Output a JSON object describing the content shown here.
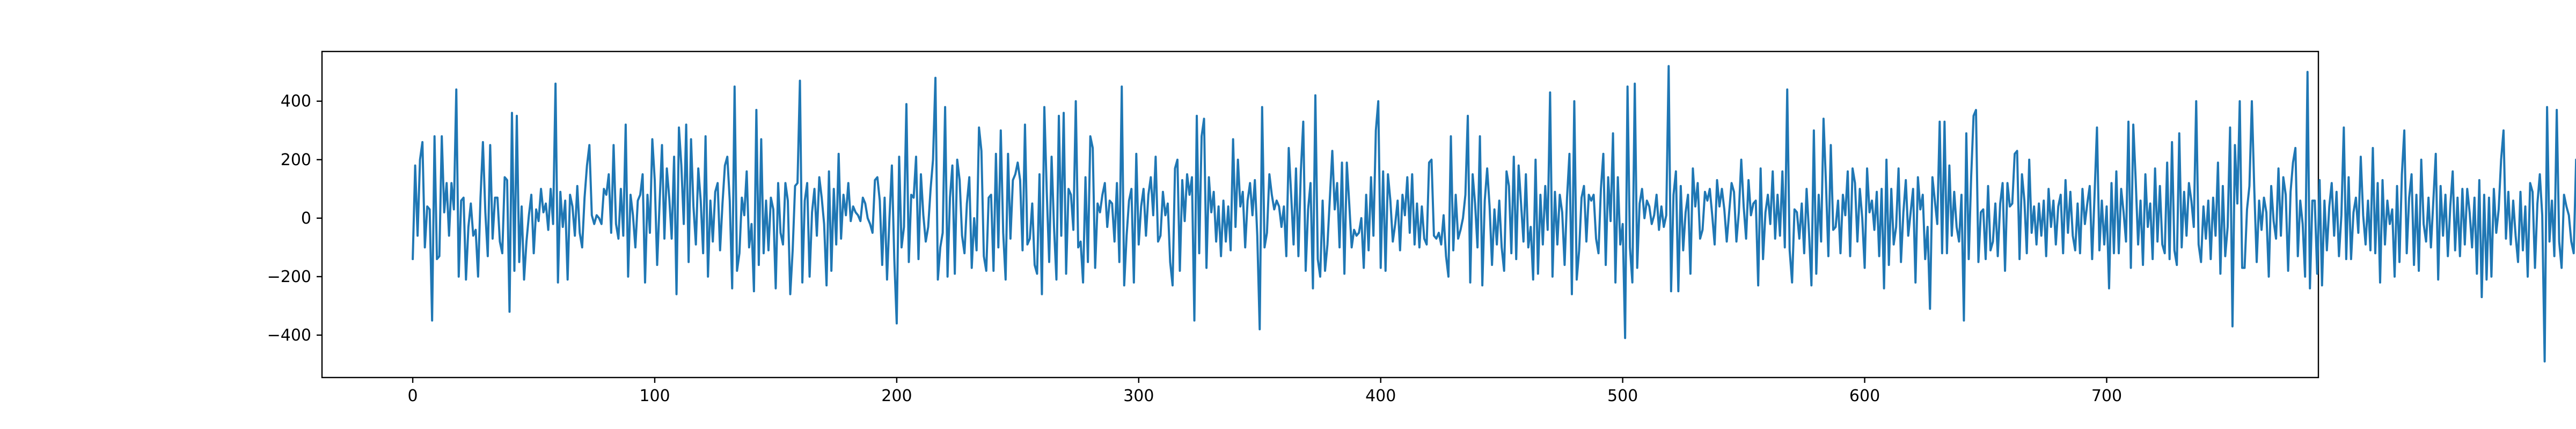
{
  "chart_data": {
    "type": "line",
    "title": "",
    "xlabel": "",
    "ylabel": "",
    "xlim": [
      -37.5,
      787.5
    ],
    "ylim": [
      -545,
      570
    ],
    "grid": false,
    "legend": "none",
    "xticks": [
      0,
      100,
      200,
      300,
      400,
      500,
      600,
      700
    ],
    "yticks": [
      -400,
      -200,
      0,
      200,
      400
    ],
    "xtick_labels": [
      "0",
      "100",
      "200",
      "300",
      "400",
      "500",
      "600",
      "700"
    ],
    "ytick_labels": [
      "−400",
      "−200",
      "0",
      "200",
      "400"
    ],
    "series": [
      {
        "color": "#1f77b4",
        "x_start": 0,
        "x_step": 1,
        "values": [
          -140,
          180,
          -60,
          200,
          260,
          -100,
          40,
          30,
          -350,
          280,
          -140,
          -130,
          280,
          20,
          120,
          -60,
          120,
          30,
          440,
          -200,
          60,
          70,
          -210,
          -30,
          50,
          -60,
          -40,
          -200,
          70,
          260,
          20,
          -130,
          250,
          -70,
          70,
          70,
          -80,
          -120,
          140,
          130,
          -320,
          360,
          -180,
          350,
          -150,
          40,
          -210,
          -80,
          10,
          80,
          -120,
          30,
          -10,
          100,
          20,
          50,
          -40,
          100,
          -20,
          460,
          -220,
          90,
          -30,
          60,
          -210,
          80,
          40,
          -60,
          110,
          -50,
          -100,
          70,
          180,
          250,
          10,
          -20,
          10,
          0,
          -20,
          100,
          80,
          150,
          -50,
          250,
          -20,
          -70,
          100,
          -60,
          320,
          -200,
          80,
          10,
          -100,
          60,
          80,
          150,
          -220,
          80,
          -50,
          270,
          130,
          -160,
          50,
          250,
          -70,
          170,
          70,
          -70,
          210,
          -260,
          310,
          180,
          -20,
          320,
          -150,
          270,
          40,
          -90,
          170,
          60,
          -120,
          280,
          -200,
          60,
          -80,
          90,
          120,
          -110,
          50,
          180,
          210,
          60,
          -240,
          450,
          -180,
          -120,
          70,
          10,
          160,
          -100,
          -20,
          -250,
          370,
          -160,
          270,
          -120,
          60,
          -110,
          70,
          30,
          -240,
          120,
          -50,
          -90,
          120,
          60,
          -260,
          -110,
          110,
          120,
          470,
          -220,
          60,
          120,
          -200,
          20,
          100,
          -60,
          140,
          70,
          -20,
          -230,
          160,
          -180,
          100,
          -90,
          220,
          -70,
          80,
          10,
          120,
          -10,
          40,
          20,
          10,
          -10,
          70,
          50,
          0,
          -20,
          -50,
          130,
          140,
          60,
          -160,
          70,
          -210,
          0,
          180,
          -140,
          -360,
          210,
          -100,
          -30,
          390,
          -150,
          80,
          70,
          210,
          -140,
          150,
          10,
          -80,
          -30,
          100,
          200,
          480,
          -210,
          -100,
          -50,
          380,
          -200,
          70,
          180,
          -190,
          200,
          130,
          -60,
          -120,
          50,
          140,
          -170,
          0,
          -110,
          310,
          230,
          -130,
          -180,
          70,
          80,
          -180,
          220,
          -100,
          300,
          -50,
          -210,
          220,
          -70,
          130,
          150,
          190,
          130,
          -110,
          320,
          -90,
          -70,
          50,
          -160,
          -190,
          150,
          -260,
          380,
          90,
          -150,
          210,
          -30,
          -210,
          350,
          -60,
          360,
          -190,
          100,
          80,
          -40,
          400,
          -100,
          -80,
          -220,
          140,
          -150,
          280,
          240,
          -170,
          50,
          20,
          80,
          120,
          -30,
          60,
          50,
          -80,
          120,
          -150,
          450,
          -230,
          -60,
          60,
          100,
          -220,
          220,
          -90,
          40,
          100,
          -60,
          80,
          140,
          10,
          210,
          -80,
          -60,
          90,
          10,
          50,
          -150,
          -230,
          170,
          200,
          -180,
          130,
          -10,
          150,
          80,
          140,
          -350,
          350,
          -120,
          280,
          340,
          -170,
          140,
          20,
          90,
          -80,
          40,
          -130,
          60,
          -80,
          40,
          -110,
          270,
          -30,
          200,
          40,
          90,
          -100,
          60,
          120,
          10,
          130,
          -60,
          -380,
          380,
          -100,
          -50,
          150,
          80,
          30,
          60,
          40,
          -30,
          40,
          -130,
          240,
          80,
          -90,
          170,
          -130,
          160,
          330,
          -180,
          30,
          120,
          -240,
          420,
          -140,
          -200,
          60,
          -180,
          -90,
          70,
          230,
          30,
          120,
          -100,
          190,
          -190,
          190,
          50,
          -100,
          -40,
          -60,
          -50,
          0,
          -170,
          80,
          -110,
          140,
          -60,
          300,
          400,
          -170,
          160,
          -180,
          150,
          60,
          -80,
          -20,
          60,
          -110,
          80,
          10,
          140,
          -50,
          150,
          -90,
          50,
          -100,
          40,
          -70,
          -90,
          190,
          200,
          -60,
          -70,
          -50,
          -90,
          10,
          -130,
          -200,
          280,
          -110,
          80,
          -70,
          -40,
          0,
          80,
          350,
          -220,
          150,
          50,
          -100,
          280,
          -230,
          60,
          170,
          40,
          -160,
          30,
          -90,
          60,
          -100,
          -180,
          160,
          110,
          -120,
          210,
          -140,
          180,
          50,
          -80,
          150,
          -100,
          -30,
          -210,
          200,
          -190,
          80,
          -90,
          110,
          -40,
          430,
          -200,
          90,
          -90,
          80,
          20,
          -160,
          70,
          220,
          -260,
          400,
          -210,
          -110,
          70,
          110,
          -80,
          80,
          60,
          80,
          -70,
          -120,
          100,
          220,
          -160,
          140,
          -10,
          290,
          -220,
          140,
          -90,
          -20,
          -410,
          450,
          -100,
          -220,
          460,
          -170,
          50,
          100,
          0,
          60,
          40,
          -20,
          10,
          80,
          -40,
          40,
          -30,
          10,
          520,
          -250,
          80,
          160,
          -250,
          110,
          -110,
          20,
          80,
          -190,
          170,
          40,
          120,
          -70,
          -40,
          90,
          60,
          100,
          10,
          -90,
          130,
          40,
          100,
          30,
          -80,
          20,
          120,
          90,
          -80,
          20,
          200,
          40,
          -70,
          130,
          10,
          50,
          60,
          -230,
          170,
          -140,
          20,
          80,
          -20,
          160,
          -70,
          80,
          -60,
          160,
          -100,
          440,
          -110,
          -220,
          30,
          20,
          -70,
          50,
          -120,
          100,
          -50,
          -230,
          300,
          -190,
          80,
          -80,
          340,
          120,
          -130,
          250,
          -40,
          -30,
          60,
          -120,
          80,
          10,
          160,
          -130,
          170,
          120,
          -80,
          100,
          0,
          -170,
          170,
          20,
          60,
          -40,
          90,
          -130,
          100,
          -240,
          200,
          -160,
          100,
          -90,
          -30,
          170,
          -150,
          20,
          130,
          -60,
          20,
          100,
          -220,
          140,
          30,
          80,
          -140,
          -30,
          -310,
          140,
          60,
          -20,
          330,
          -120,
          330,
          -120,
          180,
          -60,
          90,
          -30,
          -80,
          80,
          -350,
          290,
          -140,
          140,
          350,
          370,
          -150,
          20,
          30,
          -140,
          110,
          -110,
          -80,
          50,
          -130,
          50,
          120,
          -180,
          120,
          40,
          50,
          220,
          230,
          -140,
          150,
          60,
          -120,
          200,
          -50,
          40,
          -90,
          50,
          -60,
          60,
          -130,
          100,
          -30,
          60,
          -90,
          40,
          80,
          -120,
          130,
          -50,
          90,
          -60,
          -110,
          50,
          -120,
          100,
          -20,
          50,
          110,
          -140,
          80,
          310,
          -110,
          60,
          -90,
          40,
          -240,
          120,
          -120,
          160,
          -120,
          100,
          20,
          -80,
          330,
          -170,
          320,
          130,
          -90,
          60,
          -160,
          150,
          -30,
          50,
          -140,
          170,
          -80,
          110,
          -90,
          -120,
          190,
          -140,
          260,
          -110,
          -160,
          290,
          -100,
          90,
          -60,
          120,
          60,
          -30,
          400,
          -90,
          -150,
          40,
          -70,
          60,
          -140,
          70,
          -60,
          190,
          -190,
          110,
          -130,
          -30,
          310,
          -370,
          250,
          50,
          400,
          -170,
          -170,
          30,
          110,
          400,
          100,
          -150,
          60,
          -40,
          70,
          20,
          -200,
          110,
          -10,
          -70,
          170,
          -60,
          140,
          80,
          -180,
          90,
          190,
          240,
          -130,
          60,
          -20,
          -200,
          500,
          -240,
          60,
          60,
          -190,
          130,
          -230,
          60,
          -110,
          40,
          120,
          -60,
          90,
          -130,
          10,
          310,
          -140,
          140,
          -140,
          20,
          70,
          -50,
          210,
          10,
          -90,
          60,
          -110,
          240,
          -120,
          120,
          -220,
          130,
          -90,
          60,
          -20,
          30,
          -200,
          110,
          -150,
          150,
          300,
          -120,
          70,
          150,
          -160,
          80,
          -180,
          200,
          -20,
          -80,
          70,
          -100,
          60,
          220,
          -210,
          110,
          -60,
          80,
          -130,
          40,
          160,
          -110,
          70,
          -130,
          100,
          -90,
          100,
          20,
          -100,
          70,
          -190,
          130,
          -270,
          80,
          -210,
          70,
          -200,
          100,
          -50,
          30,
          200,
          300,
          -70,
          90,
          -90,
          60,
          -60,
          -150,
          90,
          -110,
          40,
          -200,
          120,
          90,
          -170,
          50,
          150,
          10,
          -490,
          380,
          -80,
          60,
          -130,
          370,
          -80,
          -170,
          80,
          40,
          10,
          -80,
          -120,
          200,
          -90,
          -80,
          200
        ]
      }
    ]
  }
}
